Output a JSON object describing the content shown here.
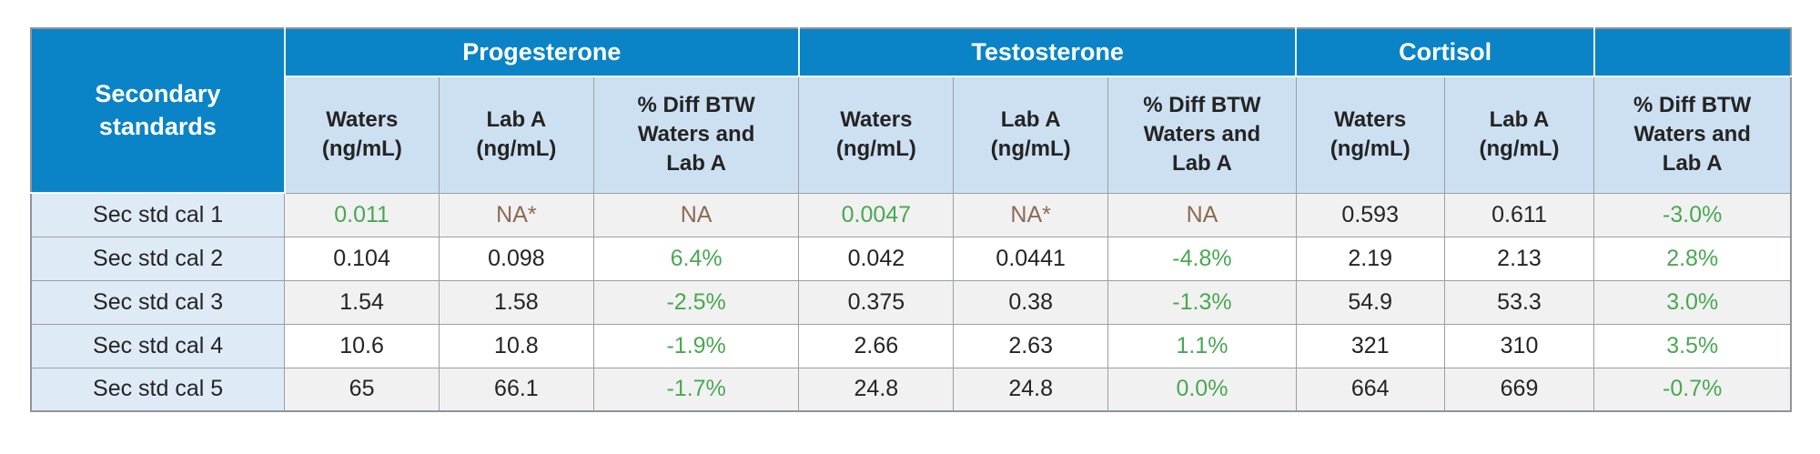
{
  "colors": {
    "header_blue": "#0a84c6",
    "subheader_blue": "#cde0f2",
    "rowlabel_blue": "#dfeaf7",
    "stripe_gray": "#f1f1f1",
    "green": "#4aa752",
    "brown": "#8a6b54"
  },
  "table": {
    "corner_header": "Secondary\nstandards",
    "groups": [
      {
        "label": "Progesterone"
      },
      {
        "label": "Testosterone"
      },
      {
        "label": "Cortisol"
      },
      {
        "label": ""
      }
    ],
    "sub_headers": [
      "Waters\n(ng/mL)",
      "Lab A\n(ng/mL)",
      "% Diff BTW\nWaters and\nLab A",
      "Waters\n(ng/mL)",
      "Lab A\n(ng/mL)",
      "% Diff BTW\nWaters and\nLab A",
      "Waters\n(ng/mL)",
      "Lab A\n(ng/mL)",
      "% Diff BTW\nWaters and\nLab A"
    ],
    "rows": [
      {
        "label": "Sec std cal 1",
        "cells": [
          {
            "text": "0.011",
            "color": "green"
          },
          {
            "text": "NA*",
            "color": "brown"
          },
          {
            "text": "NA",
            "color": "brown"
          },
          {
            "text": "0.0047",
            "color": "green"
          },
          {
            "text": "NA*",
            "color": "brown"
          },
          {
            "text": "NA",
            "color": "brown"
          },
          {
            "text": "0.593",
            "color": "black"
          },
          {
            "text": "0.611",
            "color": "black"
          },
          {
            "text": "-3.0%",
            "color": "green"
          }
        ]
      },
      {
        "label": "Sec std cal 2",
        "cells": [
          {
            "text": "0.104",
            "color": "black"
          },
          {
            "text": "0.098",
            "color": "black"
          },
          {
            "text": "6.4%",
            "color": "green"
          },
          {
            "text": "0.042",
            "color": "black"
          },
          {
            "text": "0.0441",
            "color": "black"
          },
          {
            "text": "-4.8%",
            "color": "green"
          },
          {
            "text": "2.19",
            "color": "black"
          },
          {
            "text": "2.13",
            "color": "black"
          },
          {
            "text": "2.8%",
            "color": "green"
          }
        ]
      },
      {
        "label": "Sec std cal 3",
        "cells": [
          {
            "text": "1.54",
            "color": "black"
          },
          {
            "text": "1.58",
            "color": "black"
          },
          {
            "text": "-2.5%",
            "color": "green"
          },
          {
            "text": "0.375",
            "color": "black"
          },
          {
            "text": "0.38",
            "color": "black"
          },
          {
            "text": "-1.3%",
            "color": "green"
          },
          {
            "text": "54.9",
            "color": "black"
          },
          {
            "text": "53.3",
            "color": "black"
          },
          {
            "text": "3.0%",
            "color": "green"
          }
        ]
      },
      {
        "label": "Sec std cal 4",
        "cells": [
          {
            "text": "10.6",
            "color": "black"
          },
          {
            "text": "10.8",
            "color": "black"
          },
          {
            "text": "-1.9%",
            "color": "green"
          },
          {
            "text": "2.66",
            "color": "black"
          },
          {
            "text": "2.63",
            "color": "black"
          },
          {
            "text": "1.1%",
            "color": "green"
          },
          {
            "text": "321",
            "color": "black"
          },
          {
            "text": "310",
            "color": "black"
          },
          {
            "text": "3.5%",
            "color": "green"
          }
        ]
      },
      {
        "label": "Sec std cal 5",
        "cells": [
          {
            "text": "65",
            "color": "black"
          },
          {
            "text": "66.1",
            "color": "black"
          },
          {
            "text": "-1.7%",
            "color": "green"
          },
          {
            "text": "24.8",
            "color": "black"
          },
          {
            "text": "24.8",
            "color": "black"
          },
          {
            "text": "0.0%",
            "color": "green"
          },
          {
            "text": "664",
            "color": "black"
          },
          {
            "text": "669",
            "color": "black"
          },
          {
            "text": "-0.7%",
            "color": "green"
          }
        ]
      }
    ]
  }
}
